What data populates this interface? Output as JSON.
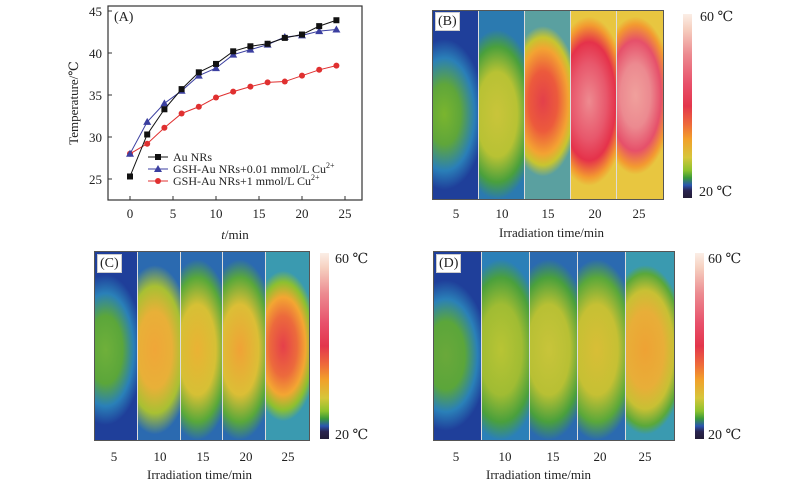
{
  "chart_data": [
    {
      "type": "line",
      "panel_label": "(A)",
      "xlabel_italic": "t",
      "xlabel": "/min",
      "ylabel": "Temperature/℃",
      "xlim": [
        -2,
        27
      ],
      "ylim": [
        22,
        45
      ],
      "xticks": [
        0,
        5,
        10,
        15,
        20,
        25
      ],
      "yticks": [
        25,
        30,
        35,
        40,
        45
      ],
      "legend_position": "lower-center",
      "x": [
        0,
        2,
        4,
        6,
        8,
        10,
        12,
        14,
        16,
        18,
        20,
        22,
        24
      ],
      "series": [
        {
          "name": "Au NRs",
          "color": "#111111",
          "marker": "square",
          "values": [
            25.3,
            30.3,
            33.3,
            35.7,
            37.7,
            38.7,
            40.2,
            40.8,
            41.1,
            41.8,
            42.2,
            43.2,
            43.9
          ]
        },
        {
          "name": "GSH-Au NRs+0.01 mmol/L Cu",
          "sup": "2+",
          "color": "#3b3fa0",
          "marker": "triangle",
          "values": [
            28.0,
            31.8,
            34.0,
            35.5,
            37.3,
            38.2,
            39.8,
            40.4,
            41.0,
            41.9,
            42.1,
            42.6,
            42.8
          ]
        },
        {
          "name": "GSH-Au NRs+1 mmol/L Cu",
          "sup": "2+",
          "color": "#e03030",
          "marker": "circle",
          "values": [
            28.0,
            29.2,
            31.1,
            32.8,
            33.6,
            34.7,
            35.4,
            36.0,
            36.5,
            36.6,
            37.3,
            38.0,
            38.5
          ]
        }
      ]
    },
    {
      "type": "heatmap",
      "panel_label": "(B)",
      "xlabel": "Irradiation time/min",
      "categories": [
        "5",
        "10",
        "15",
        "20",
        "25"
      ],
      "colorbar": {
        "max_label": "60 ℃",
        "min_label": "20 ℃",
        "range": [
          20,
          60
        ]
      }
    },
    {
      "type": "heatmap",
      "panel_label": "(C)",
      "xlabel": "Irradiation time/min",
      "categories": [
        "5",
        "10",
        "15",
        "20",
        "25"
      ],
      "colorbar": {
        "max_label": "60 ℃",
        "min_label": "20 ℃",
        "range": [
          20,
          60
        ]
      }
    },
    {
      "type": "heatmap",
      "panel_label": "(D)",
      "xlabel": "Irradiation time/min",
      "categories": [
        "5",
        "10",
        "15",
        "20",
        "25"
      ],
      "colorbar": {
        "max_label": "60 ℃",
        "min_label": "20 ℃",
        "range": [
          20,
          60
        ]
      }
    }
  ]
}
